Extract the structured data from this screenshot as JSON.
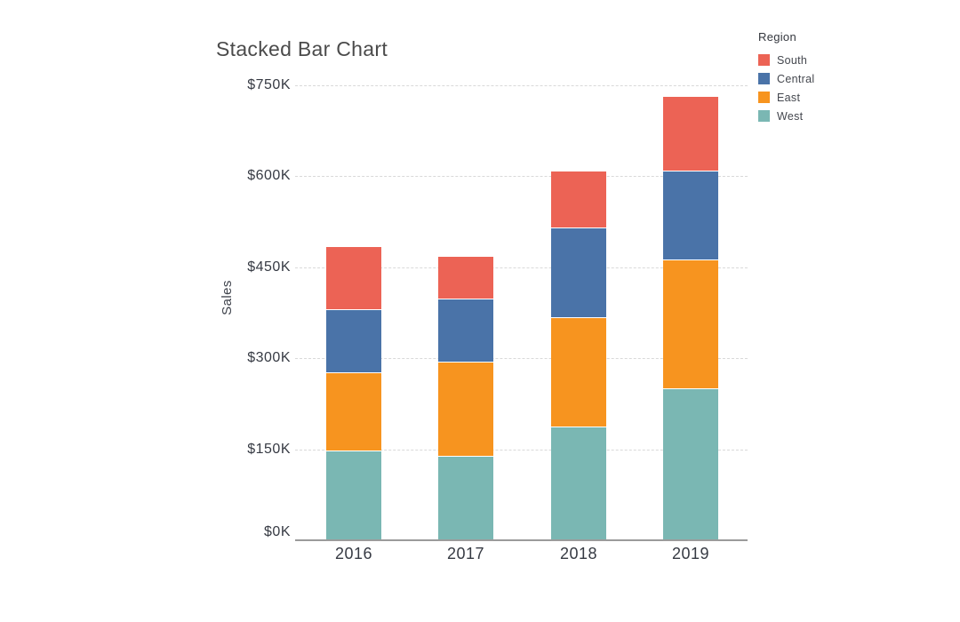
{
  "chart_data": {
    "type": "bar",
    "stacked": true,
    "title": "Stacked Bar Chart",
    "ylabel": "Sales",
    "xlabel": "",
    "unit": "thousands of USD",
    "categories": [
      "2016",
      "2017",
      "2018",
      "2019"
    ],
    "series": [
      {
        "name": "West",
        "color": "#7ab7b3",
        "values": [
          148,
          139,
          187,
          250
        ]
      },
      {
        "name": "East",
        "color": "#f7941f",
        "values": [
          129,
          156,
          181,
          213
        ]
      },
      {
        "name": "Central",
        "color": "#4a73a8",
        "values": [
          104,
          103,
          147,
          147
        ]
      },
      {
        "name": "South",
        "color": "#ec6355",
        "values": [
          104,
          71,
          94,
          123
        ]
      }
    ],
    "stack_order": "bottom to top: West, East, Central, South",
    "legend_title": "Region",
    "legend_position": "top-right",
    "legend_order": [
      "South",
      "Central",
      "East",
      "West"
    ],
    "y_ticks": [
      {
        "label": "$0K",
        "value": 0
      },
      {
        "label": "$150K",
        "value": 150
      },
      {
        "label": "$300K",
        "value": 300
      },
      {
        "label": "$450K",
        "value": 450
      },
      {
        "label": "$600K",
        "value": 600
      },
      {
        "label": "$750K",
        "value": 750
      }
    ],
    "ylim": [
      0,
      750
    ],
    "grid": "horizontal dashed"
  },
  "colors": {
    "axis_line": "#9b9b9b",
    "gridline": "#d9d9d9",
    "title_text": "#4b4b4b",
    "tick_text": "#363a43"
  }
}
